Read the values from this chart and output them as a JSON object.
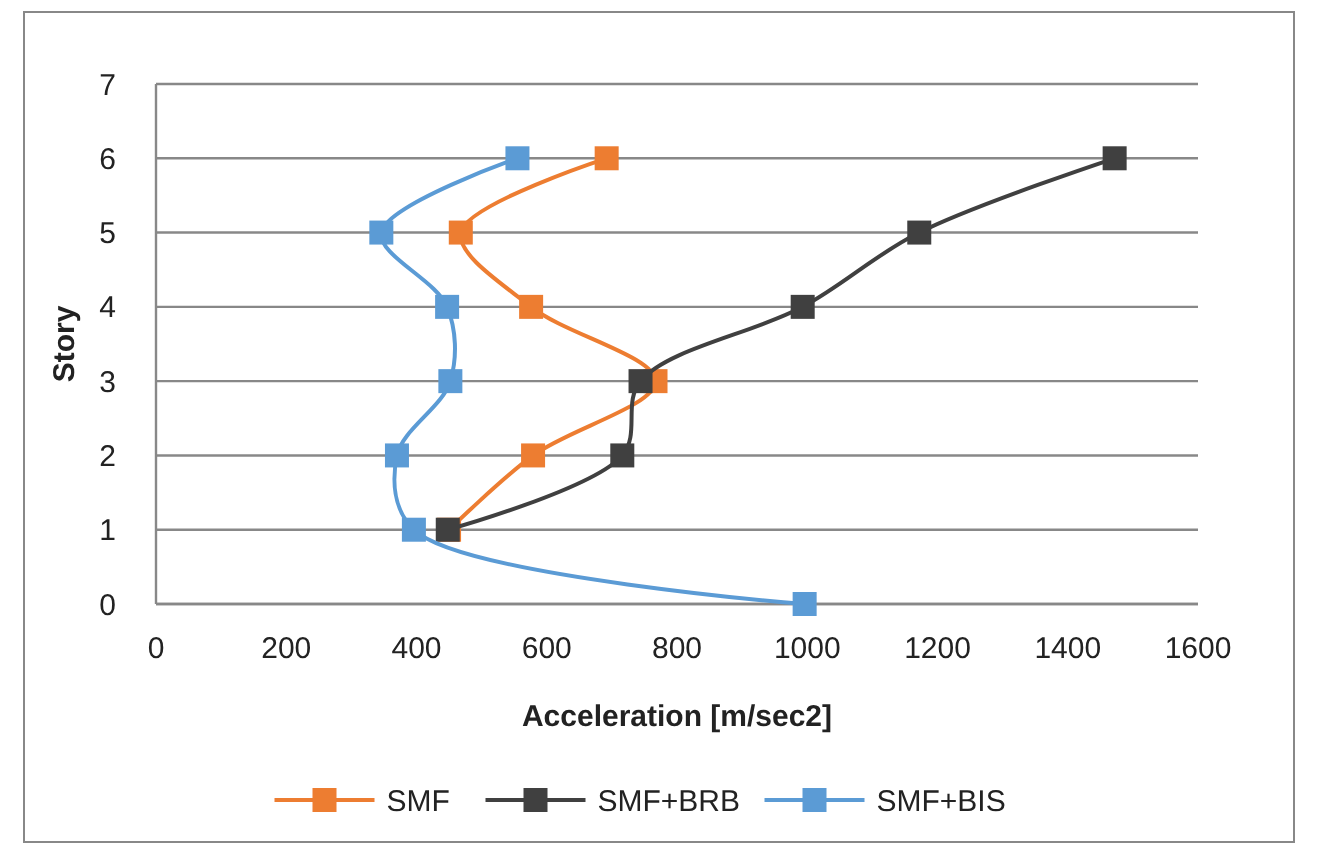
{
  "chart_data": {
    "type": "line",
    "xlabel": "Acceleration [m/sec2]",
    "ylabel": "Story",
    "xlim": [
      0,
      1600
    ],
    "xticks": [
      0,
      200,
      400,
      600,
      800,
      1000,
      1200,
      1400,
      1600
    ],
    "ylim": [
      0,
      7
    ],
    "yticks": [
      0,
      1,
      2,
      3,
      4,
      5,
      6,
      7
    ],
    "grid": "y",
    "legend": "bottom",
    "marker": "square",
    "series": [
      {
        "name": "SMF",
        "color": "#ed7d31",
        "x": [
          450,
          579,
          767,
          576,
          468,
          692
        ],
        "values": [
          1,
          2,
          3,
          4,
          5,
          6
        ]
      },
      {
        "name": "SMF+BRB",
        "color": "#404040",
        "x": [
          448,
          716,
          744,
          993,
          1172,
          1472
        ],
        "values": [
          1,
          2,
          3,
          4,
          5,
          6
        ]
      },
      {
        "name": "SMF+BIS",
        "color": "#5b9bd5",
        "x": [
          996,
          396,
          370,
          452,
          447,
          346,
          555
        ],
        "values": [
          0,
          1,
          2,
          3,
          4,
          5,
          6
        ]
      }
    ]
  }
}
